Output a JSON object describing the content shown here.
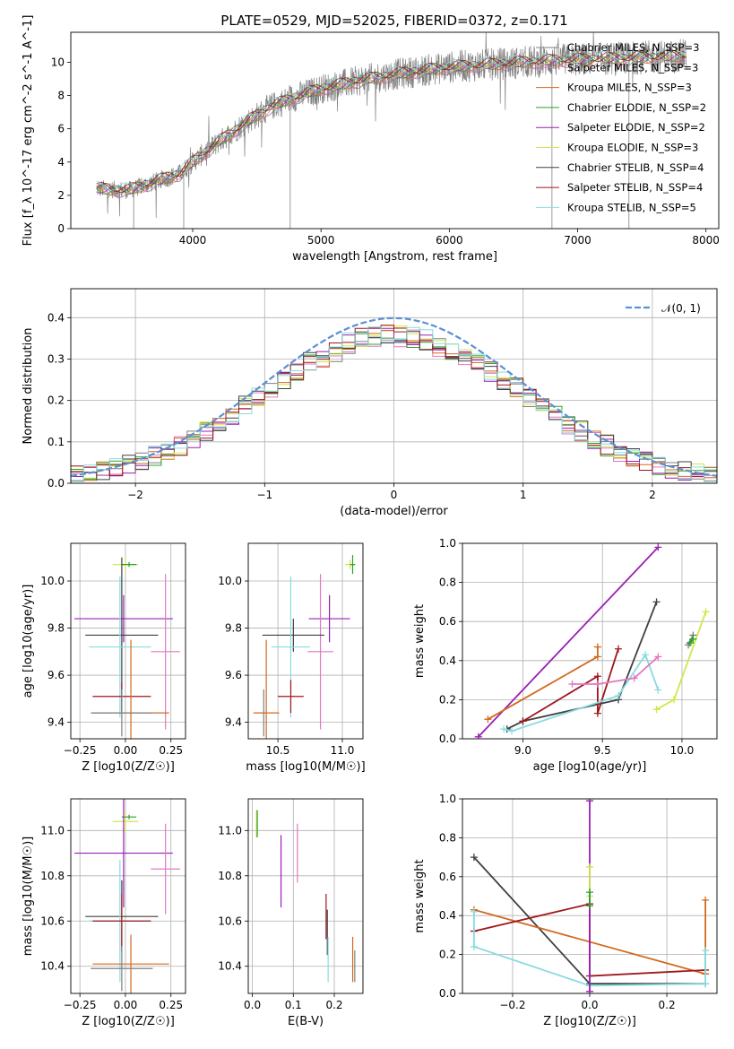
{
  "figure": {
    "title": "PLATE=0529, MJD=52025, FIBERID=0372, z=0.171"
  },
  "colors": {
    "chabrier_miles": "#7f7f7f",
    "salpeter_miles": "#e377c2",
    "kroupa_miles": "#d2691e",
    "chabrier_elodie": "#2ca02c",
    "salpeter_elodie": "#9b1fb4",
    "kroupa_elodie": "#cfe84a",
    "chabrier_stelib": "#404040",
    "salpeter_stelib": "#a0161c",
    "kroupa_stelib": "#86dce0",
    "normal_curve": "#5b8fd6",
    "spectrum": "#808080"
  },
  "chart_data": [
    {
      "id": "spectrum",
      "type": "line",
      "xlabel": "wavelength [Angstrom, rest frame]",
      "ylabel": "Flux [f_λ 10^-17 erg cm^-2 s^-1 A^-1]",
      "xlim": [
        3050,
        8100
      ],
      "ylim": [
        0,
        11.8
      ],
      "xticks": [
        4000,
        5000,
        6000,
        7000,
        8000
      ],
      "yticks": [
        0,
        2,
        4,
        6,
        8,
        10
      ],
      "x_range_observed": [
        3250,
        7850
      ],
      "continuum": {
        "x": [
          3250,
          3500,
          3700,
          3900,
          4000,
          4200,
          4400,
          4600,
          4800,
          5000,
          5300,
          5600,
          6000,
          6400,
          6800,
          7200,
          7600,
          7850
        ],
        "y": [
          2.4,
          2.3,
          2.8,
          3.3,
          4.0,
          5.2,
          6.3,
          7.3,
          7.9,
          8.4,
          8.9,
          9.3,
          9.7,
          9.9,
          10.1,
          10.2,
          10.3,
          10.4
        ]
      },
      "legend": [
        {
          "label": "Chabrier MILES, N_SSP=3",
          "color_key": "chabrier_miles"
        },
        {
          "label": "Salpeter MILES, N_SSP=3",
          "color_key": "salpeter_miles"
        },
        {
          "label": "Kroupa MILES, N_SSP=3",
          "color_key": "kroupa_miles"
        },
        {
          "label": "Chabrier ELODIE, N_SSP=2",
          "color_key": "chabrier_elodie"
        },
        {
          "label": "Salpeter ELODIE, N_SSP=2",
          "color_key": "salpeter_elodie"
        },
        {
          "label": "Kroupa ELODIE, N_SSP=3",
          "color_key": "kroupa_elodie"
        },
        {
          "label": "Chabrier STELIB, N_SSP=4",
          "color_key": "chabrier_stelib"
        },
        {
          "label": "Salpeter STELIB, N_SSP=4",
          "color_key": "salpeter_stelib"
        },
        {
          "label": "Kroupa STELIB, N_SSP=5",
          "color_key": "kroupa_stelib"
        }
      ]
    },
    {
      "id": "residuals",
      "type": "line",
      "xlabel": "(data-model)/error",
      "ylabel": "Normed distribution",
      "xlim": [
        -2.5,
        2.5
      ],
      "ylim": [
        0,
        0.47
      ],
      "xticks": [
        -2,
        -1,
        0,
        1,
        2
      ],
      "yticks": [
        0.0,
        0.1,
        0.2,
        0.3,
        0.4
      ],
      "grid": true,
      "legend": [
        {
          "label": "𝒩(0, 1)",
          "color_key": "normal_curve"
        }
      ],
      "bin_width": 0.1
    },
    {
      "id": "age_vs_Z",
      "type": "scatter",
      "xlabel": "Z [log10(Z/Z☉)]",
      "ylabel": "age  [log10(age/yr)]",
      "xlim": [
        -0.3,
        0.33
      ],
      "ylim": [
        9.33,
        10.16
      ],
      "xticks": [
        -0.25,
        0.0,
        0.25
      ],
      "yticks": [
        9.4,
        9.6,
        9.8,
        10.0
      ],
      "grid": true,
      "points": [
        {
          "color_key": "kroupa_elodie",
          "x": 0.0,
          "y": 10.07,
          "xerr": 0.07,
          "yerr": 0.03
        },
        {
          "color_key": "chabrier_elodie",
          "x": 0.02,
          "y": 10.07,
          "xerr": 0.04,
          "yerr": 0.01
        },
        {
          "color_key": "salpeter_elodie",
          "x": -0.01,
          "y": 9.84,
          "xerr": 0.27,
          "yerr": 0.1
        },
        {
          "color_key": "salpeter_miles",
          "x": 0.22,
          "y": 9.7,
          "xerr": 0.08,
          "yerr": 0.33
        },
        {
          "color_key": "chabrier_stelib",
          "x": -0.02,
          "y": 9.77,
          "xerr": 0.2,
          "yerr": 0.33
        },
        {
          "color_key": "kroupa_stelib",
          "x": -0.03,
          "y": 9.72,
          "xerr": 0.17,
          "yerr": 0.3
        },
        {
          "color_key": "salpeter_stelib",
          "x": -0.02,
          "y": 9.51,
          "xerr": 0.16,
          "yerr": 0.06
        },
        {
          "color_key": "kroupa_miles",
          "x": 0.03,
          "y": 9.44,
          "xerr": 0.21,
          "yerr": 0.31
        },
        {
          "color_key": "chabrier_miles",
          "x": -0.02,
          "y": 9.44,
          "xerr": 0.17,
          "yerr": 0.1
        }
      ]
    },
    {
      "id": "age_vs_mass",
      "type": "scatter",
      "xlabel": "mass [log10(M/M☉)]",
      "ylabel": "",
      "xlim": [
        10.27,
        11.16
      ],
      "ylim": [
        9.33,
        10.16
      ],
      "xticks": [
        10.5,
        11.0
      ],
      "yticks": [
        9.4,
        9.6,
        9.8,
        10.0
      ],
      "grid": true,
      "points": [
        {
          "color_key": "kroupa_elodie",
          "x": 11.06,
          "y": 10.07,
          "xerr": 0.04,
          "yerr": 0.02
        },
        {
          "color_key": "chabrier_elodie",
          "x": 11.08,
          "y": 10.07,
          "xerr": 0.02,
          "yerr": 0.04
        },
        {
          "color_key": "salpeter_elodie",
          "x": 10.9,
          "y": 9.84,
          "xerr": 0.16,
          "yerr": 0.1
        },
        {
          "color_key": "salpeter_miles",
          "x": 10.83,
          "y": 9.7,
          "xerr": 0.1,
          "yerr": 0.33
        },
        {
          "color_key": "chabrier_stelib",
          "x": 10.62,
          "y": 9.77,
          "xerr": 0.24,
          "yerr": 0.07
        },
        {
          "color_key": "kroupa_stelib",
          "x": 10.6,
          "y": 9.72,
          "xerr": 0.15,
          "yerr": 0.3
        },
        {
          "color_key": "salpeter_stelib",
          "x": 10.6,
          "y": 9.51,
          "xerr": 0.1,
          "yerr": 0.07
        },
        {
          "color_key": "kroupa_miles",
          "x": 10.41,
          "y": 9.44,
          "xerr": 0.1,
          "yerr": 0.31
        },
        {
          "color_key": "chabrier_miles",
          "x": 10.39,
          "y": 9.44,
          "xerr": 0.01,
          "yerr": 0.1
        }
      ]
    },
    {
      "id": "massweight_vs_age",
      "type": "line",
      "xlabel": "age  [log10(age/yr)]",
      "ylabel": "mass weight",
      "xlim": [
        8.62,
        10.22
      ],
      "ylim": [
        0,
        1.0
      ],
      "xticks": [
        9.0,
        9.5,
        10.0
      ],
      "yticks": [
        0.0,
        0.2,
        0.4,
        0.6,
        0.8,
        1.0
      ],
      "grid": true,
      "series": [
        {
          "color_key": "salpeter_elodie",
          "x": [
            8.72,
            9.85
          ],
          "y": [
            0.01,
            0.98
          ]
        },
        {
          "color_key": "chabrier_stelib",
          "x": [
            8.9,
            9.0,
            9.6,
            9.84
          ],
          "y": [
            0.05,
            0.09,
            0.2,
            0.7
          ]
        },
        {
          "color_key": "kroupa_miles",
          "x": [
            8.78,
            9.47,
            9.47
          ],
          "y": [
            0.1,
            0.42,
            0.47
          ]
        },
        {
          "color_key": "salpeter_stelib",
          "x": [
            9.0,
            9.47,
            9.47,
            9.6
          ],
          "y": [
            0.09,
            0.32,
            0.13,
            0.46
          ]
        },
        {
          "color_key": "kroupa_stelib",
          "x": [
            8.88,
            8.93,
            9.6,
            9.77,
            9.85
          ],
          "y": [
            0.05,
            0.04,
            0.22,
            0.43,
            0.25
          ]
        },
        {
          "color_key": "salpeter_miles",
          "x": [
            9.31,
            9.47,
            9.7,
            9.85
          ],
          "y": [
            0.28,
            0.28,
            0.31,
            0.42
          ]
        },
        {
          "color_key": "kroupa_elodie",
          "x": [
            9.84,
            9.95,
            10.15
          ],
          "y": [
            0.15,
            0.2,
            0.65
          ]
        },
        {
          "color_key": "chabrier_miles",
          "x": [
            10.04,
            10.07
          ],
          "y": [
            0.48,
            0.53
          ]
        },
        {
          "color_key": "chabrier_elodie",
          "x": [
            10.05,
            10.07
          ],
          "y": [
            0.49,
            0.51
          ]
        }
      ]
    },
    {
      "id": "mass_vs_Z",
      "type": "scatter",
      "xlabel": "Z [log10(Z/Z☉)]",
      "ylabel": "mass [log10(M/M☉)]",
      "xlim": [
        -0.3,
        0.33
      ],
      "ylim": [
        10.28,
        11.14
      ],
      "xticks": [
        -0.25,
        0.0,
        0.25
      ],
      "yticks": [
        10.4,
        10.6,
        10.8,
        11.0
      ],
      "grid": true,
      "points": [
        {
          "color_key": "kroupa_elodie",
          "x": 0.0,
          "y": 11.04,
          "xerr": 0.07,
          "yerr": 0.05
        },
        {
          "color_key": "chabrier_elodie",
          "x": 0.02,
          "y": 11.06,
          "xerr": 0.04,
          "yerr": 0.01
        },
        {
          "color_key": "salpeter_elodie",
          "x": -0.01,
          "y": 10.9,
          "xerr": 0.27,
          "yerr": 0.24
        },
        {
          "color_key": "salpeter_miles",
          "x": 0.22,
          "y": 10.83,
          "xerr": 0.08,
          "yerr": 0.2
        },
        {
          "color_key": "chabrier_stelib",
          "x": -0.02,
          "y": 10.62,
          "xerr": 0.2,
          "yerr": 0.16
        },
        {
          "color_key": "kroupa_stelib",
          "x": -0.03,
          "y": 10.6,
          "xerr": 0.17,
          "yerr": 0.27
        },
        {
          "color_key": "salpeter_stelib",
          "x": -0.02,
          "y": 10.6,
          "xerr": 0.16,
          "yerr": 0.12
        },
        {
          "color_key": "kroupa_miles",
          "x": 0.03,
          "y": 10.41,
          "xerr": 0.21,
          "yerr": 0.13
        },
        {
          "color_key": "chabrier_miles",
          "x": -0.02,
          "y": 10.39,
          "xerr": 0.17,
          "yerr": 0.1
        }
      ]
    },
    {
      "id": "mass_vs_ebv",
      "type": "scatter",
      "xlabel": "E(B-V)",
      "ylabel": "",
      "xlim": [
        -0.01,
        0.27
      ],
      "ylim": [
        10.28,
        11.14
      ],
      "xticks": [
        0.0,
        0.1,
        0.2
      ],
      "yticks": [
        10.4,
        10.6,
        10.8,
        11.0
      ],
      "grid": true,
      "points": [
        {
          "color_key": "kroupa_elodie",
          "x": 0.01,
          "y": 11.03,
          "xerr": 0.0,
          "yerr": 0.06
        },
        {
          "color_key": "chabrier_elodie",
          "x": 0.012,
          "y": 11.03,
          "xerr": 0.0,
          "yerr": 0.06
        },
        {
          "color_key": "salpeter_elodie",
          "x": 0.07,
          "y": 10.82,
          "xerr": 0.0,
          "yerr": 0.16
        },
        {
          "color_key": "salpeter_miles",
          "x": 0.11,
          "y": 10.9,
          "xerr": 0.0,
          "yerr": 0.13
        },
        {
          "color_key": "salpeter_stelib",
          "x": 0.18,
          "y": 10.62,
          "xerr": 0.0,
          "yerr": 0.1
        },
        {
          "color_key": "chabrier_stelib",
          "x": 0.183,
          "y": 10.55,
          "xerr": 0.0,
          "yerr": 0.1
        },
        {
          "color_key": "kroupa_stelib",
          "x": 0.185,
          "y": 10.43,
          "xerr": 0.0,
          "yerr": 0.1
        },
        {
          "color_key": "kroupa_miles",
          "x": 0.245,
          "y": 10.43,
          "xerr": 0.0,
          "yerr": 0.1
        },
        {
          "color_key": "chabrier_miles",
          "x": 0.25,
          "y": 10.4,
          "xerr": 0.0,
          "yerr": 0.07
        }
      ]
    },
    {
      "id": "massweight_vs_Z",
      "type": "line",
      "xlabel": "Z [log10(Z/Z☉)]",
      "ylabel": "mass weight",
      "xlim": [
        -0.33,
        0.33
      ],
      "ylim": [
        0,
        1.0
      ],
      "xticks": [
        -0.2,
        0.0,
        0.2
      ],
      "yticks": [
        0.0,
        0.2,
        0.4,
        0.6,
        0.8,
        1.0
      ],
      "grid": true,
      "series": [
        {
          "color_key": "chabrier_stelib",
          "x": [
            -0.3,
            0.0,
            0.3
          ],
          "y": [
            0.7,
            0.05,
            0.05
          ]
        },
        {
          "color_key": "kroupa_miles",
          "x": [
            -0.3,
            0.3
          ],
          "y": [
            0.43,
            0.1
          ]
        },
        {
          "color_key": "salpeter_stelib",
          "x": [
            -0.3,
            0.0,
            0.0,
            0.3
          ],
          "y": [
            0.32,
            0.46,
            0.09,
            0.12
          ]
        },
        {
          "color_key": "kroupa_stelib",
          "x": [
            -0.3,
            -0.3,
            0.0,
            0.3
          ],
          "y": [
            0.42,
            0.24,
            0.04,
            0.05
          ]
        },
        {
          "color_key": "salpeter_elodie",
          "x": [
            0.0,
            0.0
          ],
          "y": [
            0.01,
            0.99
          ]
        },
        {
          "color_key": "kroupa_elodie",
          "x": [
            0.0,
            0.0
          ],
          "y": [
            0.5,
            0.65
          ]
        },
        {
          "color_key": "chabrier_elodie",
          "x": [
            0.0,
            0.0
          ],
          "y": [
            0.45,
            0.52
          ]
        },
        {
          "color_key": "kroupa_miles",
          "x": [
            0.3,
            0.3
          ],
          "y": [
            0.1,
            0.48
          ]
        },
        {
          "color_key": "kroupa_stelib",
          "x": [
            0.3,
            0.3
          ],
          "y": [
            0.05,
            0.22
          ]
        }
      ]
    }
  ]
}
